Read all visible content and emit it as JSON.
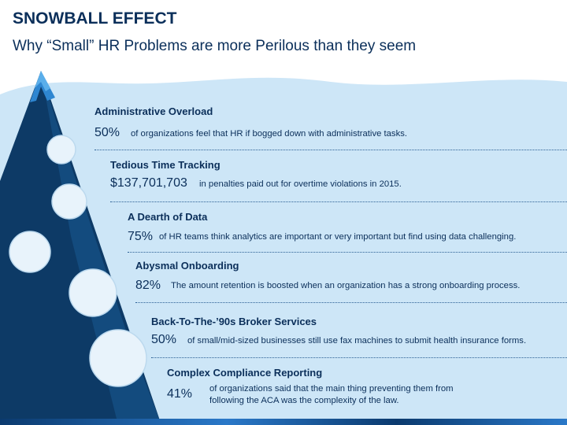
{
  "slide": {
    "title": "SNOWBALL EFFECT",
    "subtitle": "Why “Small” HR Problems are more Perilous than they seem"
  },
  "items": [
    {
      "title": "Administrative Overload",
      "stat": "50%",
      "desc": "of organizations feel that HR if bogged down with administrative tasks."
    },
    {
      "title": "Tedious Time Tracking",
      "stat": "$137,701,703",
      "desc": "in penalties paid out for overtime violations in 2015."
    },
    {
      "title": "A Dearth of Data",
      "stat": "75%",
      "desc": "of HR teams think analytics are important or very important but find using data challenging."
    },
    {
      "title": "Abysmal Onboarding",
      "stat": "82%",
      "desc": "The amount retention is boosted when an organization has a strong onboarding process."
    },
    {
      "title": "Back-To-The-’90s Broker Services",
      "stat": "50%",
      "desc": "of small/mid-sized businesses still use fax machines to submit health insurance forms."
    },
    {
      "title": "Complex Compliance Reporting",
      "stat": "41%",
      "desc": "of organizations said that the main thing preventing them from following the ACA was the complexity of the law."
    }
  ],
  "colors": {
    "sky": "#cde6f7",
    "mountain_dark": "#0d3a66",
    "mountain_mid": "#1a5a92",
    "peak": "#2e86d1",
    "snowball": "#e8f3fb",
    "text": "#0b2f5a",
    "divider": "#2a5f94"
  }
}
